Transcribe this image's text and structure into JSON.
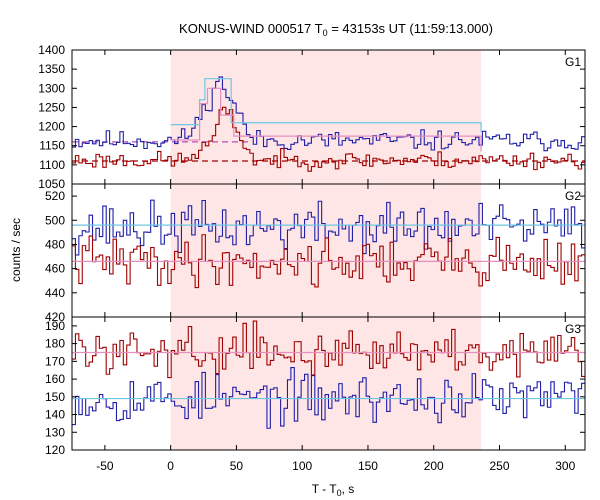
{
  "chart_data": {
    "type": "line",
    "title": {
      "prefix": "KONUS-WIND 000517 T",
      "sub": "0",
      "suffix": " = 43153s UT (11:59:13.000)"
    },
    "xlabel": {
      "prefix": "T - T",
      "sub": "0",
      "suffix": ", s"
    },
    "ylabel": "counts / sec",
    "xlim": [
      -75,
      315
    ],
    "xticks": [
      -50,
      0,
      50,
      100,
      150,
      200,
      250,
      300
    ],
    "highlight_interval": [
      0,
      236
    ],
    "colors": {
      "highlight": "#ffe6e6",
      "blue": "#1f1fa8",
      "red": "#a00000",
      "cyan": "#6ec6e6",
      "pink": "#e58fbf",
      "magenta": "#b050b0"
    },
    "panels": [
      {
        "label": "G1",
        "ylim": [
          1050,
          1400
        ],
        "yticks": [
          1050,
          1100,
          1150,
          1200,
          1250,
          1300,
          1350,
          1400
        ],
        "series": [
          {
            "color_key": "blue",
            "style": "step",
            "seed": 11,
            "base": 1163,
            "noise": 13,
            "bumps": [
              {
                "center": 36,
                "width": 8,
                "height": 150
              },
              {
                "center": 50,
                "width": 5,
                "height": 45
              },
              {
                "center": 20,
                "width": 6,
                "height": 35
              }
            ]
          },
          {
            "color_key": "red",
            "style": "step",
            "seed": 23,
            "base": 1112,
            "noise": 11,
            "bumps": [
              {
                "center": 40,
                "width": 7,
                "height": 125
              },
              {
                "center": 52,
                "width": 5,
                "height": 35
              },
              {
                "center": 22,
                "width": 5,
                "height": 25
              }
            ]
          }
        ],
        "steps": [
          {
            "color_key": "cyan",
            "x": [
              0,
              22,
              26,
              46,
              236
            ],
            "y": [
              1205,
              1270,
              1325,
              1210,
              1185
            ]
          },
          {
            "color_key": "pink",
            "x": [
              0,
              22,
              28,
              38,
              48,
              236
            ],
            "y": [
              1165,
              1260,
              1300,
              1230,
              1175,
              1135
            ]
          }
        ],
        "background_levels": [
          {
            "color_key": "magenta",
            "y": 1160,
            "x_range": [
              -75,
              60
            ]
          },
          {
            "color_key": "red",
            "y": 1110,
            "x_range": [
              -75,
              315
            ]
          }
        ]
      },
      {
        "label": "G2",
        "ylim": [
          420,
          530
        ],
        "yticks": [
          420,
          440,
          460,
          480,
          500,
          520
        ],
        "series": [
          {
            "color_key": "blue",
            "style": "step",
            "seed": 37,
            "base": 494,
            "noise": 10,
            "bumps": []
          },
          {
            "color_key": "red",
            "style": "step",
            "seed": 41,
            "base": 466,
            "noise": 10,
            "bumps": []
          }
        ],
        "steps": [
          {
            "color_key": "cyan",
            "x": [
              -75,
              315
            ],
            "y": [
              496,
              496
            ]
          },
          {
            "color_key": "pink",
            "x": [
              -75,
              315
            ],
            "y": [
              466,
              466
            ]
          }
        ],
        "background_levels": []
      },
      {
        "label": "G3",
        "ylim": [
          120,
          195
        ],
        "yticks": [
          120,
          130,
          140,
          150,
          160,
          170,
          180,
          190
        ],
        "series": [
          {
            "color_key": "blue",
            "style": "step",
            "seed": 53,
            "base": 149,
            "noise": 7,
            "bumps": []
          },
          {
            "color_key": "red",
            "style": "step",
            "seed": 59,
            "base": 176,
            "noise": 6,
            "bumps": []
          }
        ],
        "steps": [
          {
            "color_key": "cyan",
            "x": [
              -75,
              315
            ],
            "y": [
              149,
              149
            ]
          },
          {
            "color_key": "pink",
            "x": [
              -75,
              315
            ],
            "y": [
              175,
              175
            ]
          }
        ],
        "background_levels": []
      }
    ]
  }
}
